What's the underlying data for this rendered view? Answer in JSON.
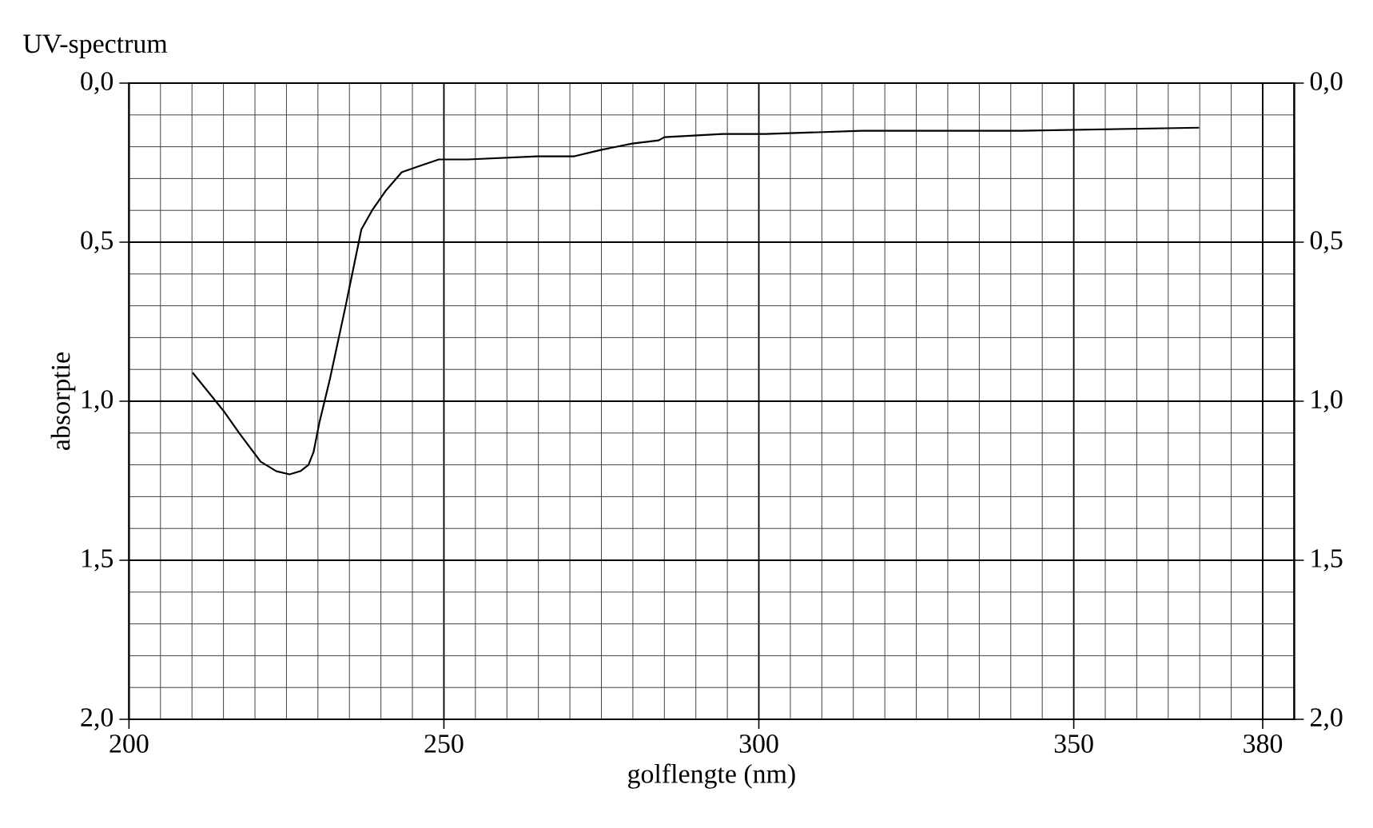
{
  "chart_data": {
    "type": "line",
    "title": "UV-spectrum",
    "xlabel": "golflengte (nm)",
    "ylabel": "absorptie",
    "x": [
      210.1,
      215.0,
      217.5,
      220.9,
      223.4,
      225.5,
      227.2,
      228.5,
      229.3,
      230.2,
      231.9,
      234.4,
      236.9,
      238.6,
      240.7,
      243.3,
      246.2,
      249.2,
      253.8,
      264.8,
      270.7,
      274.9,
      279.9,
      284.1,
      285.0,
      294.3,
      301.0,
      316.3,
      341.6,
      369.9
    ],
    "series": [
      {
        "color": "#000000",
        "values": [
          0.91,
          1.03,
          1.1,
          1.19,
          1.22,
          1.23,
          1.22,
          1.2,
          1.16,
          1.07,
          0.93,
          0.7,
          0.46,
          0.4,
          0.34,
          0.28,
          0.26,
          0.24,
          0.24,
          0.23,
          0.23,
          0.21,
          0.19,
          0.18,
          0.17,
          0.16,
          0.16,
          0.15,
          0.15,
          0.14
        ]
      }
    ],
    "xlim": [
      200,
      385
    ],
    "xticks": [
      200,
      250,
      300,
      350,
      380
    ],
    "ylim": [
      2.0,
      0.0
    ],
    "yticks": [
      {
        "value": 0.0,
        "label": "0,0"
      },
      {
        "value": 0.5,
        "label": "0,5"
      },
      {
        "value": 1.0,
        "label": "1,0"
      },
      {
        "value": 1.5,
        "label": "1,5"
      },
      {
        "value": 2.0,
        "label": "2,0"
      }
    ],
    "y2lim": [
      2.0,
      0.0
    ],
    "y2ticks": [
      {
        "value": 0.0,
        "label": "0,0"
      },
      {
        "value": 0.5,
        "label": "0,5"
      },
      {
        "value": 1.0,
        "label": "1,0"
      },
      {
        "value": 1.5,
        "label": "1,5"
      },
      {
        "value": 2.0,
        "label": "2,0"
      }
    ],
    "grid": true,
    "marker": "none",
    "line_style": "solid"
  }
}
